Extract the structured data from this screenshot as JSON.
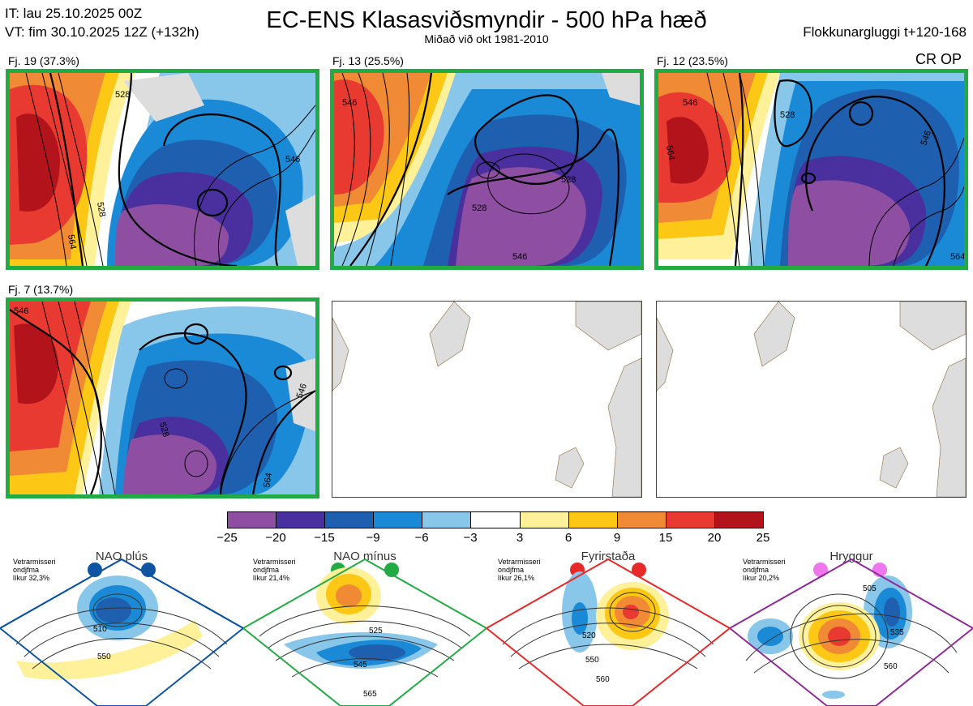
{
  "header": {
    "it_line": "IT: lau 25.10.2025 00Z",
    "vt_line": "VT: fim 30.10.2025 12Z  (+132h)",
    "title": "EC-ENS Klasasviðsmyndir - 500 hPa hæð",
    "subtitle": "Miðað við okt 1981-2010",
    "window": "Flokkunargluggi t+120-168",
    "crop": "CR OP"
  },
  "panels": [
    {
      "label": "Fj. 19 (37.3%)",
      "contours": [
        "528",
        "546",
        "564",
        "546",
        "528"
      ]
    },
    {
      "label": "Fj. 13 (25.5%)",
      "contours": [
        "546",
        "528",
        "546",
        "528"
      ]
    },
    {
      "label": "Fj. 12 (23.5%)",
      "contours": [
        "546",
        "564",
        "528",
        "546",
        "564"
      ]
    },
    {
      "label": "Fj. 7 (13.7%)",
      "contours": [
        "546",
        "528",
        "546",
        "564"
      ]
    }
  ],
  "colorbar": {
    "ticks": [
      "−25",
      "−20",
      "−15",
      "−9",
      "−6",
      "−3",
      "3",
      "6",
      "9",
      "15",
      "20",
      "25"
    ],
    "colors": [
      "#8e4fa3",
      "#4a2f9e",
      "#1f5fb0",
      "#1a8ad6",
      "#88c6ea",
      "#ffffff",
      "#fff19a",
      "#fcc815",
      "#f08a35",
      "#e83a30",
      "#b3141b"
    ]
  },
  "regimes": [
    {
      "title": "NAO plús",
      "note1": "Vetrarmisseri",
      "note2": "ondjfma",
      "note3": "líkur 32,3%",
      "color": "#0d55a3",
      "c1": "510",
      "c2": "550"
    },
    {
      "title": "NAO mínus",
      "note1": "Vetrarmisseri",
      "note2": "ondjfma",
      "note3": "líkur 21,4%",
      "color": "#22aa44",
      "c1": "525",
      "c2": "545",
      "c3": "565"
    },
    {
      "title": "Fyrirstaða",
      "note1": "Vetrarmisseri",
      "note2": "ondjfma",
      "note3": "líkur 26,1%",
      "color": "#e62a2a",
      "c1": "520",
      "c2": "550",
      "c3": "560"
    },
    {
      "title": "Hryggur",
      "note1": "Vetrarmisseri",
      "note2": "ondjfma",
      "note3": "líkur 20,2%",
      "color": "#8e2a96",
      "c1": "505",
      "c2": "535",
      "c3": "560"
    }
  ]
}
